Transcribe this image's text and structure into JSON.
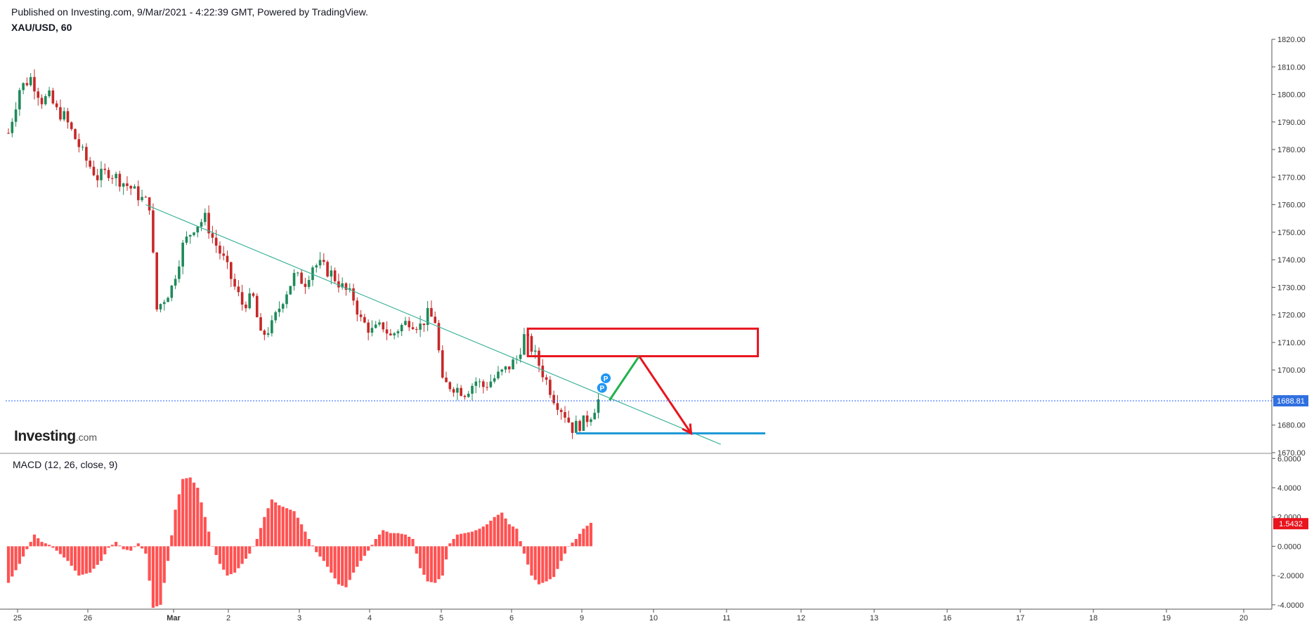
{
  "header": {
    "published": "Published on Investing.com, 9/Mar/2021 - 4:22:39 GMT, Powered by TradingView.",
    "symbol": "XAU/USD, 60"
  },
  "logo": {
    "main": "Investing",
    "suffix": ".com"
  },
  "colors": {
    "up": "#26a69a",
    "down": "#ef5350",
    "candle_up": "#1e8a5a",
    "candle_down": "#c62828",
    "trendline": "#3fb39a",
    "zone": "#e8141e",
    "support": "#1e9ad6",
    "projection_up": "#22b14c",
    "projection_down": "#e8141e",
    "price_line": "#2962ff",
    "macd_hist": "#ff5252",
    "macd_badge": "#e8141e",
    "price_badge": "#2f6fe0",
    "marker": "#2196f3"
  },
  "chart_data": [
    {
      "type": "candlestick",
      "title": "XAU/USD, 60",
      "y_range": [
        1670,
        1820
      ],
      "y_ticks": [
        "1820.00",
        "1810.00",
        "1800.00",
        "1790.00",
        "1780.00",
        "1770.00",
        "1760.00",
        "1750.00",
        "1740.00",
        "1730.00",
        "1720.00",
        "1710.00",
        "1700.00",
        "1690.00",
        "1680.00",
        "1670.00"
      ],
      "x_ticks": [
        "25",
        "26",
        "Mar",
        "2",
        "3",
        "4",
        "5",
        "6",
        "9",
        "10",
        "11",
        "12",
        "13",
        "16",
        "17",
        "18",
        "19",
        "20"
      ],
      "last_price": "1688.81",
      "close_path": [
        [
          0,
          1786
        ],
        [
          3,
          1802
        ],
        [
          6,
          1806
        ],
        [
          9,
          1798
        ],
        [
          11,
          1799
        ],
        [
          13,
          1794
        ],
        [
          15,
          1792
        ],
        [
          18,
          1784
        ],
        [
          21,
          1776
        ],
        [
          24,
          1770
        ],
        [
          27,
          1772
        ],
        [
          30,
          1769
        ],
        [
          33,
          1766
        ],
        [
          36,
          1762
        ],
        [
          38,
          1760
        ],
        [
          40,
          1722
        ],
        [
          42,
          1726
        ],
        [
          44,
          1730
        ],
        [
          47,
          1745
        ],
        [
          50,
          1752
        ],
        [
          53,
          1755
        ],
        [
          55,
          1748
        ],
        [
          58,
          1740
        ],
        [
          61,
          1730
        ],
        [
          63,
          1724
        ],
        [
          66,
          1726
        ],
        [
          68,
          1712
        ],
        [
          71,
          1716
        ],
        [
          74,
          1726
        ],
        [
          77,
          1734
        ],
        [
          80,
          1732
        ],
        [
          82,
          1738
        ],
        [
          84,
          1738
        ],
        [
          87,
          1735
        ],
        [
          90,
          1730
        ],
        [
          93,
          1726
        ],
        [
          95,
          1718
        ],
        [
          98,
          1714
        ],
        [
          101,
          1716
        ],
        [
          103,
          1712
        ],
        [
          105,
          1715
        ],
        [
          108,
          1718
        ],
        [
          111,
          1716
        ],
        [
          113,
          1720
        ],
        [
          115,
          1718
        ],
        [
          117,
          1695
        ],
        [
          120,
          1694
        ],
        [
          123,
          1692
        ],
        [
          126,
          1696
        ],
        [
          128,
          1694
        ],
        [
          131,
          1697
        ],
        [
          134,
          1700
        ],
        [
          137,
          1704
        ],
        [
          139,
          1712
        ],
        [
          141,
          1708
        ],
        [
          143,
          1702
        ],
        [
          145,
          1696
        ],
        [
          147,
          1690
        ],
        [
          150,
          1684
        ],
        [
          152,
          1679
        ],
        [
          155,
          1681
        ],
        [
          157,
          1684
        ],
        [
          159,
          1689
        ]
      ],
      "x_index_range": [
        0,
        159
      ],
      "annotations": {
        "trendline": {
          "from": [
            37,
            1760
          ],
          "to": [
            192,
            1673
          ]
        },
        "resistance_zone": {
          "x": [
            140,
            202
          ],
          "y": [
            1705,
            1715
          ]
        },
        "support_line": {
          "x": [
            153,
            204
          ],
          "y": 1677
        },
        "projection_up": {
          "from": [
            162,
            1689
          ],
          "to": [
            170,
            1705
          ]
        },
        "projection_down": {
          "from": [
            170,
            1705
          ],
          "to": [
            184,
            1677
          ]
        },
        "markers": [
          {
            "x": 160,
            "y": 1693.5,
            "label": "P"
          },
          {
            "x": 161,
            "y": 1697,
            "label": "P"
          }
        ]
      }
    },
    {
      "type": "bar",
      "title": "MACD (12, 26, close, 9)",
      "y_range": [
        -4.2,
        6.3
      ],
      "y_ticks": [
        "6.0000",
        "4.0000",
        "2.0000",
        "0.0000",
        "-2.0000",
        "-4.0000"
      ],
      "last_value": "1.5432",
      "histogram_path": [
        [
          0,
          -2.5
        ],
        [
          3,
          -1.2
        ],
        [
          5,
          -0.2
        ],
        [
          7,
          0.8
        ],
        [
          9,
          0.3
        ],
        [
          11,
          0.1
        ],
        [
          13,
          -0.3
        ],
        [
          16,
          -1.0
        ],
        [
          19,
          -2.0
        ],
        [
          22,
          -1.8
        ],
        [
          25,
          -1.0
        ],
        [
          27,
          -0.1
        ],
        [
          29,
          0.3
        ],
        [
          31,
          -0.2
        ],
        [
          33,
          -0.3
        ],
        [
          35,
          0.2
        ],
        [
          37,
          -0.5
        ],
        [
          39,
          -4.2
        ],
        [
          41,
          -4.0
        ],
        [
          43,
          -1.0
        ],
        [
          45,
          2.5
        ],
        [
          47,
          4.6
        ],
        [
          49,
          4.7
        ],
        [
          51,
          4.0
        ],
        [
          53,
          2.0
        ],
        [
          55,
          0.0
        ],
        [
          57,
          -1.2
        ],
        [
          59,
          -2.0
        ],
        [
          61,
          -1.8
        ],
        [
          63,
          -1.2
        ],
        [
          65,
          -0.5
        ],
        [
          67,
          0.5
        ],
        [
          69,
          2.0
        ],
        [
          71,
          3.2
        ],
        [
          73,
          2.8
        ],
        [
          75,
          2.6
        ],
        [
          77,
          2.4
        ],
        [
          79,
          1.5
        ],
        [
          81,
          0.5
        ],
        [
          83,
          -0.4
        ],
        [
          85,
          -1.0
        ],
        [
          87,
          -1.8
        ],
        [
          89,
          -2.6
        ],
        [
          91,
          -2.8
        ],
        [
          93,
          -1.8
        ],
        [
          95,
          -1.0
        ],
        [
          97,
          -0.3
        ],
        [
          99,
          0.5
        ],
        [
          101,
          1.1
        ],
        [
          103,
          0.9
        ],
        [
          105,
          0.9
        ],
        [
          107,
          0.8
        ],
        [
          109,
          0.5
        ],
        [
          111,
          -1.5
        ],
        [
          113,
          -2.4
        ],
        [
          115,
          -2.5
        ],
        [
          117,
          -2.0
        ],
        [
          119,
          0.2
        ],
        [
          121,
          0.8
        ],
        [
          123,
          0.9
        ],
        [
          125,
          1.0
        ],
        [
          127,
          1.2
        ],
        [
          129,
          1.5
        ],
        [
          131,
          2.0
        ],
        [
          133,
          2.3
        ],
        [
          135,
          1.5
        ],
        [
          137,
          1.2
        ],
        [
          139,
          -0.5
        ],
        [
          141,
          -2.0
        ],
        [
          143,
          -2.6
        ],
        [
          145,
          -2.4
        ],
        [
          147,
          -2.1
        ],
        [
          149,
          -1.0
        ],
        [
          151,
          0.0
        ],
        [
          153,
          0.5
        ],
        [
          155,
          1.2
        ],
        [
          157,
          1.6
        ]
      ],
      "x_index_range": [
        0,
        157
      ]
    }
  ],
  "macd_label": "MACD (12, 26, close, 9)"
}
